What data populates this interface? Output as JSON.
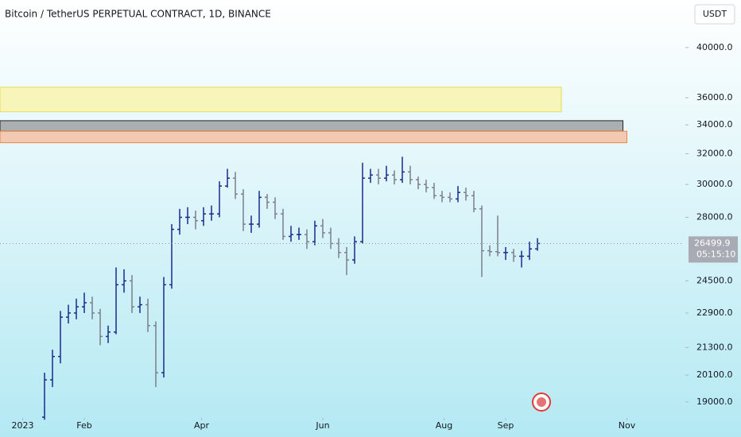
{
  "chart_data": {
    "type": "ohlc",
    "title": "Bitcoin / TetherUS PERPETUAL CONTRACT, 1D, BINANCE",
    "currency_button": "USDT",
    "log_scale": true,
    "ylim": [
      18400,
      44200
    ],
    "yticks": [
      {
        "value": 40000,
        "label": "40000.0"
      },
      {
        "value": 36000,
        "label": "36000.0"
      },
      {
        "value": 34000,
        "label": "34000.0"
      },
      {
        "value": 32000,
        "label": "32000.0"
      },
      {
        "value": 30000,
        "label": "30000.0"
      },
      {
        "value": 28000,
        "label": "28000.0"
      },
      {
        "value": 24500,
        "label": "24500.0"
      },
      {
        "value": 22900,
        "label": "22900.0"
      },
      {
        "value": 21300,
        "label": "21300.0"
      },
      {
        "value": 20100,
        "label": "20100.0"
      },
      {
        "value": 19000,
        "label": "19000.0"
      }
    ],
    "xlim": [
      -11.4,
      332.6
    ],
    "xticks": [
      {
        "value": 0,
        "label": "2023"
      },
      {
        "value": 31,
        "label": "Feb"
      },
      {
        "value": 90,
        "label": "Apr"
      },
      {
        "value": 151,
        "label": "Jun"
      },
      {
        "value": 212,
        "label": "Aug"
      },
      {
        "value": 243,
        "label": "Sep"
      },
      {
        "value": 304,
        "label": "Nov"
      }
    ],
    "x": [
      11,
      15,
      19,
      23,
      27,
      31,
      35,
      39,
      43,
      47,
      51,
      55,
      59,
      63,
      67,
      71,
      75,
      79,
      83,
      87,
      91,
      95,
      99,
      103,
      107,
      111,
      115,
      119,
      123,
      127,
      131,
      135,
      139,
      143,
      147,
      151,
      155,
      159,
      163,
      167,
      171,
      175,
      179,
      183,
      187,
      191,
      195,
      199,
      203,
      207,
      211,
      215,
      219,
      223,
      227,
      231,
      235,
      239,
      243,
      247,
      251,
      255,
      259
    ],
    "open": [
      18400,
      19900,
      20900,
      22700,
      22900,
      23200,
      23400,
      22900,
      21800,
      22000,
      24300,
      24500,
      23200,
      23300,
      22300,
      20200,
      24300,
      27300,
      28000,
      28000,
      27800,
      28200,
      28200,
      29900,
      30400,
      29400,
      27600,
      27600,
      29200,
      28900,
      28200,
      26900,
      27000,
      27000,
      26600,
      27500,
      27100,
      26500,
      26000,
      25600,
      26600,
      30400,
      30600,
      30400,
      30600,
      30300,
      30800,
      30300,
      30000,
      29800,
      29300,
      29200,
      29100,
      29500,
      29300,
      28500,
      26100,
      26050,
      26000,
      26000,
      25800,
      25800,
      26200
    ],
    "high": [
      20200,
      21200,
      23000,
      23300,
      23600,
      23900,
      23700,
      23100,
      22300,
      25200,
      25100,
      24800,
      23700,
      23600,
      22500,
      24700,
      27600,
      28500,
      28600,
      28400,
      28600,
      28700,
      30200,
      31000,
      30800,
      29700,
      28100,
      29600,
      29400,
      29200,
      28500,
      27500,
      27400,
      27300,
      27800,
      27900,
      27400,
      26800,
      26300,
      26900,
      31400,
      31000,
      31000,
      31200,
      30900,
      31800,
      31200,
      30500,
      30300,
      30100,
      29600,
      29500,
      29900,
      29800,
      29600,
      28700,
      26400,
      28100,
      26300,
      26200,
      26100,
      26600,
      26800
    ],
    "low": [
      18300,
      19600,
      20600,
      22400,
      22600,
      22900,
      22600,
      21400,
      21500,
      21900,
      23900,
      22900,
      22900,
      22000,
      19600,
      20000,
      24100,
      27000,
      27600,
      27300,
      27500,
      27800,
      28000,
      29800,
      29100,
      27200,
      27100,
      27400,
      28500,
      27900,
      26700,
      26600,
      26700,
      26200,
      26400,
      26800,
      26200,
      25700,
      24800,
      25400,
      26500,
      30100,
      30000,
      30200,
      30000,
      30100,
      30000,
      29700,
      29500,
      29100,
      28900,
      28900,
      28900,
      29000,
      28300,
      24700,
      25800,
      25800,
      25600,
      25500,
      25200,
      25600,
      26100
    ],
    "close": [
      19900,
      20900,
      22700,
      22900,
      23200,
      23400,
      22900,
      21800,
      22000,
      24300,
      24500,
      23200,
      23300,
      22300,
      20200,
      24300,
      27300,
      28000,
      28000,
      27800,
      28200,
      28200,
      29900,
      30400,
      29400,
      27600,
      27600,
      29200,
      28900,
      28200,
      26900,
      27000,
      27000,
      26600,
      27500,
      27100,
      26500,
      26000,
      25600,
      26600,
      30400,
      30600,
      30400,
      30600,
      30300,
      30800,
      30300,
      30000,
      29800,
      29300,
      29200,
      29100,
      29500,
      29300,
      28500,
      26100,
      26050,
      26000,
      26000,
      25800,
      25800,
      26200,
      26500
    ],
    "up_color": "#1a2a8c",
    "down_color": "#7b7f8c",
    "last_price": {
      "value": 26499.9,
      "label": "26499.9"
    },
    "countdown": "05:15:10",
    "zones": [
      {
        "top": 36800,
        "bottom": 34950,
        "end": 271,
        "fill": "#f7f5b9",
        "stroke": "#e6dc5a"
      },
      {
        "top": 34300,
        "bottom": 33550,
        "end": 302,
        "fill": "#aab0b2",
        "stroke": "#222222"
      },
      {
        "top": 33550,
        "bottom": 32750,
        "end": 304,
        "fill": "#f4c9b2",
        "stroke": "#e8894a"
      }
    ]
  }
}
